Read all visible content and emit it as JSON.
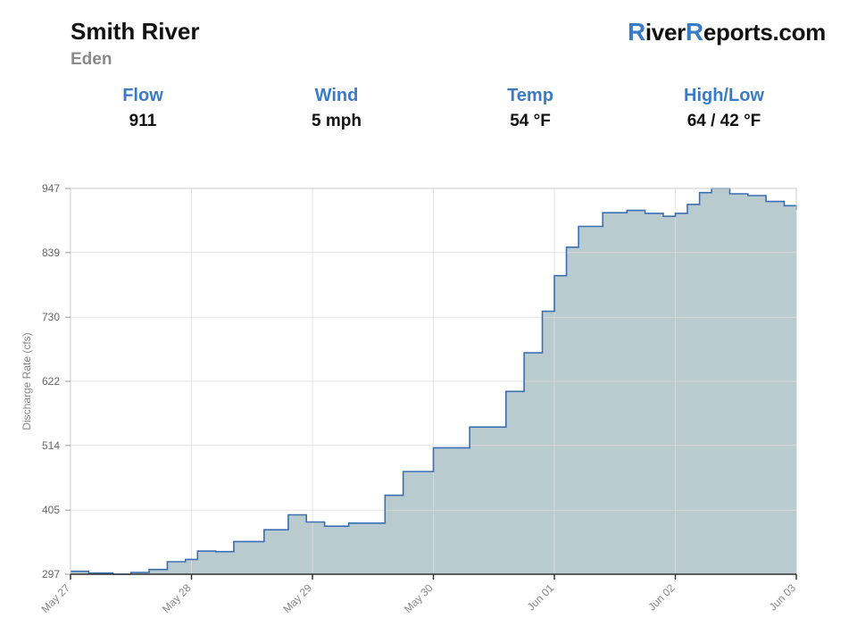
{
  "header": {
    "title": "Smith River",
    "subtitle": "Eden",
    "brand": {
      "r1": "R",
      "part1": "iver",
      "r2": "R",
      "part2": "eports.com"
    }
  },
  "stats": [
    {
      "label": "Flow",
      "value": "911"
    },
    {
      "label": "Wind",
      "value": "5 mph"
    },
    {
      "label": "Temp",
      "value": "54 °F"
    },
    {
      "label": "High/Low",
      "value": "64 / 42 °F"
    }
  ],
  "colors": {
    "accent": "#3a7bc8",
    "line": "#3a6fb5",
    "fill": "#b9cbcf",
    "grid": "#dddddd"
  },
  "chart_data": {
    "type": "area",
    "ylabel": "Discharge Rate (cfs)",
    "xlabel": "",
    "ylim": [
      297,
      947
    ],
    "y_ticks": [
      297,
      405,
      514,
      622,
      730,
      839,
      947
    ],
    "x_ticks": [
      "May 27",
      "May 28",
      "May 29",
      "May 30",
      "Jun 01",
      "Jun 02",
      "Jun 03"
    ],
    "grid": true,
    "step": true,
    "series": [
      {
        "x": [
          0.0,
          0.15,
          0.35,
          0.5,
          0.65,
          0.8,
          0.95,
          1.05,
          1.2,
          1.35,
          1.6,
          1.8,
          1.95,
          2.1,
          2.25,
          2.3,
          2.6,
          2.75,
          3.0,
          3.3,
          3.6,
          3.75,
          3.9,
          4.0,
          4.1,
          4.2,
          4.4,
          4.6,
          4.75,
          4.9,
          5.0,
          5.1,
          5.2,
          5.3,
          5.45,
          5.6,
          5.75,
          5.9,
          6.0
        ],
        "y": [
          302,
          299,
          297,
          300,
          305,
          318,
          322,
          336,
          335,
          352,
          372,
          397,
          385,
          378,
          378,
          383,
          430,
          470,
          510,
          545,
          605,
          670,
          740,
          800,
          848,
          883,
          906,
          910,
          905,
          900,
          905,
          920,
          940,
          947,
          938,
          935,
          925,
          918,
          911
        ]
      }
    ]
  }
}
